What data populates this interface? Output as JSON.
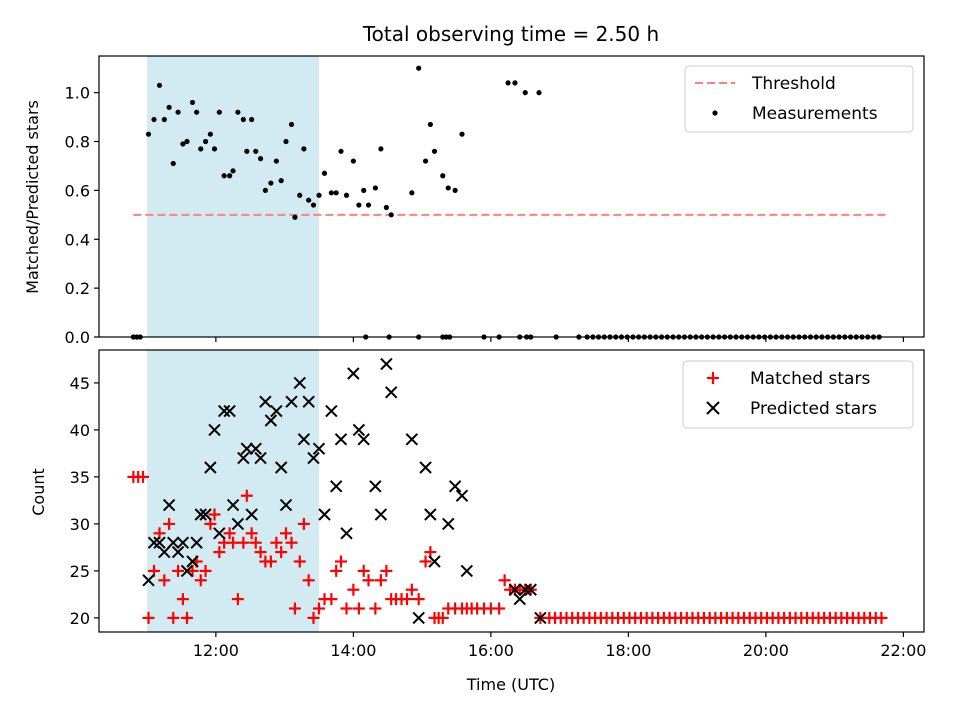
{
  "title": "Total observing time = 2.50 h",
  "colors": {
    "span": "#add8e6",
    "threshold": "#ff7f7f",
    "measurement": "#000000",
    "matched": "#ff0000",
    "predicted": "#000000"
  },
  "chart_data": [
    {
      "type": "scatter",
      "panel": "top",
      "ylabel": "Matched/Predicted stars",
      "xlim": [
        10.3,
        22.3
      ],
      "ylim": [
        0,
        1.15
      ],
      "yticks": [
        0.0,
        0.2,
        0.4,
        0.6,
        0.8,
        1.0
      ],
      "ytick_labels": [
        "0.0",
        "0.2",
        "0.4",
        "0.6",
        "0.8",
        "1.0"
      ],
      "shaded_span": [
        11.0,
        13.5
      ],
      "legend": {
        "position": "top-right",
        "entries": [
          "Threshold",
          "Measurements"
        ]
      },
      "threshold": {
        "name": "Threshold",
        "value": 0.5,
        "x_range": [
          10.8,
          21.75
        ]
      },
      "series": [
        {
          "name": "Measurements",
          "points": [
            [
              10.8,
              0.0
            ],
            [
              10.85,
              0.0
            ],
            [
              10.9,
              0.0
            ],
            [
              11.02,
              0.83
            ],
            [
              11.1,
              0.89
            ],
            [
              11.18,
              1.03
            ],
            [
              11.25,
              0.89
            ],
            [
              11.32,
              0.94
            ],
            [
              11.38,
              0.71
            ],
            [
              11.45,
              0.92
            ],
            [
              11.52,
              0.79
            ],
            [
              11.58,
              0.8
            ],
            [
              11.66,
              0.96
            ],
            [
              11.72,
              0.92
            ],
            [
              11.78,
              0.77
            ],
            [
              11.85,
              0.8
            ],
            [
              11.92,
              0.83
            ],
            [
              11.98,
              0.77
            ],
            [
              12.05,
              0.92
            ],
            [
              12.12,
              0.66
            ],
            [
              12.2,
              0.66
            ],
            [
              12.25,
              0.68
            ],
            [
              12.32,
              0.92
            ],
            [
              12.4,
              0.89
            ],
            [
              12.45,
              0.76
            ],
            [
              12.52,
              0.89
            ],
            [
              12.58,
              0.76
            ],
            [
              12.65,
              0.73
            ],
            [
              12.72,
              0.6
            ],
            [
              12.8,
              0.63
            ],
            [
              12.88,
              0.72
            ],
            [
              12.95,
              0.64
            ],
            [
              13.02,
              0.8
            ],
            [
              13.1,
              0.87
            ],
            [
              13.15,
              0.49
            ],
            [
              13.22,
              0.58
            ],
            [
              13.28,
              0.77
            ],
            [
              13.35,
              0.56
            ],
            [
              13.42,
              0.54
            ],
            [
              13.5,
              0.58
            ],
            [
              13.58,
              0.67
            ],
            [
              13.68,
              0.59
            ],
            [
              13.75,
              0.59
            ],
            [
              13.82,
              0.76
            ],
            [
              13.9,
              0.58
            ],
            [
              14.0,
              0.72
            ],
            [
              14.08,
              0.54
            ],
            [
              14.15,
              0.6
            ],
            [
              14.22,
              0.54
            ],
            [
              14.32,
              0.61
            ],
            [
              14.4,
              0.77
            ],
            [
              14.48,
              0.53
            ],
            [
              14.55,
              0.5
            ],
            [
              14.85,
              0.59
            ],
            [
              14.95,
              1.1
            ],
            [
              15.05,
              0.72
            ],
            [
              15.12,
              0.87
            ],
            [
              15.18,
              0.76
            ],
            [
              15.3,
              0.66
            ],
            [
              15.38,
              0.61
            ],
            [
              15.48,
              0.6
            ],
            [
              15.58,
              0.83
            ],
            [
              16.25,
              1.04
            ],
            [
              16.35,
              1.04
            ],
            [
              16.5,
              1.0
            ],
            [
              16.7,
              1.0
            ],
            [
              14.18,
              0.0
            ],
            [
              14.52,
              0.0
            ],
            [
              14.95,
              0.0
            ],
            [
              15.3,
              0.0
            ],
            [
              15.35,
              0.0
            ],
            [
              15.4,
              0.0
            ],
            [
              15.9,
              0.0
            ],
            [
              16.12,
              0.0
            ],
            [
              16.42,
              0.0
            ],
            [
              16.52,
              0.0
            ],
            [
              16.58,
              0.0
            ],
            [
              16.95,
              0.0
            ],
            [
              17.28,
              0.0
            ]
          ],
          "zero_run": {
            "from": 17.4,
            "to": 21.72,
            "step": 0.0833,
            "value": 0.0
          }
        }
      ]
    },
    {
      "type": "scatter",
      "panel": "bottom",
      "xlabel": "Time (UTC)",
      "ylabel": "Count",
      "xlim": [
        10.3,
        22.3
      ],
      "ylim": [
        18.5,
        48.5
      ],
      "xticks": [
        12,
        14,
        16,
        18,
        20,
        22
      ],
      "xtick_labels": [
        "12:00",
        "14:00",
        "16:00",
        "18:00",
        "20:00",
        "22:00"
      ],
      "yticks": [
        20,
        25,
        30,
        35,
        40,
        45
      ],
      "ytick_labels": [
        "20",
        "25",
        "30",
        "35",
        "40",
        "45"
      ],
      "shaded_span": [
        11.0,
        13.5
      ],
      "legend": {
        "position": "top-right",
        "entries": [
          "Matched stars",
          "Predicted stars"
        ]
      },
      "series": [
        {
          "name": "Matched stars",
          "marker": "plus",
          "points": [
            [
              10.8,
              35
            ],
            [
              10.87,
              35
            ],
            [
              10.94,
              35
            ],
            [
              11.02,
              20
            ],
            [
              11.1,
              25
            ],
            [
              11.18,
              29
            ],
            [
              11.25,
              24
            ],
            [
              11.32,
              30
            ],
            [
              11.38,
              20
            ],
            [
              11.45,
              25
            ],
            [
              11.52,
              22
            ],
            [
              11.58,
              20
            ],
            [
              11.66,
              25
            ],
            [
              11.72,
              26
            ],
            [
              11.78,
              24
            ],
            [
              11.85,
              25
            ],
            [
              11.92,
              30
            ],
            [
              11.98,
              31
            ],
            [
              12.05,
              27
            ],
            [
              12.12,
              28
            ],
            [
              12.2,
              29
            ],
            [
              12.25,
              28
            ],
            [
              12.32,
              22
            ],
            [
              12.4,
              28
            ],
            [
              12.45,
              33
            ],
            [
              12.52,
              29
            ],
            [
              12.58,
              28
            ],
            [
              12.65,
              27
            ],
            [
              12.72,
              26
            ],
            [
              12.8,
              26
            ],
            [
              12.88,
              28
            ],
            [
              12.95,
              27
            ],
            [
              13.02,
              29
            ],
            [
              13.1,
              28
            ],
            [
              13.15,
              21
            ],
            [
              13.22,
              26
            ],
            [
              13.28,
              30
            ],
            [
              13.35,
              24
            ],
            [
              13.42,
              20
            ],
            [
              13.5,
              21
            ],
            [
              13.58,
              22
            ],
            [
              13.68,
              22
            ],
            [
              13.75,
              25
            ],
            [
              13.82,
              26
            ],
            [
              13.9,
              21
            ],
            [
              14.0,
              23
            ],
            [
              14.08,
              21
            ],
            [
              14.15,
              25
            ],
            [
              14.22,
              24
            ],
            [
              14.32,
              21
            ],
            [
              14.4,
              24
            ],
            [
              14.48,
              25
            ],
            [
              14.55,
              22
            ],
            [
              14.62,
              22
            ],
            [
              14.7,
              22
            ],
            [
              14.78,
              22
            ],
            [
              14.85,
              23
            ],
            [
              14.95,
              22
            ],
            [
              15.05,
              26
            ],
            [
              15.12,
              27
            ],
            [
              15.18,
              20
            ],
            [
              15.24,
              20
            ],
            [
              15.3,
              20
            ],
            [
              15.38,
              21
            ],
            [
              15.48,
              21
            ],
            [
              15.58,
              21
            ],
            [
              15.65,
              21
            ],
            [
              15.72,
              21
            ],
            [
              15.8,
              21
            ],
            [
              15.9,
              21
            ],
            [
              16.0,
              21
            ],
            [
              16.12,
              21
            ],
            [
              16.2,
              24
            ],
            [
              16.28,
              23
            ],
            [
              16.35,
              23
            ],
            [
              16.42,
              23
            ],
            [
              16.5,
              23
            ],
            [
              16.58,
              23
            ],
            [
              16.72,
              20
            ]
          ],
          "run": {
            "from": 16.85,
            "to": 21.72,
            "step": 0.0833,
            "value": 20
          }
        },
        {
          "name": "Predicted stars",
          "marker": "x",
          "points": [
            [
              11.02,
              24
            ],
            [
              11.1,
              28
            ],
            [
              11.18,
              28
            ],
            [
              11.25,
              27
            ],
            [
              11.32,
              32
            ],
            [
              11.38,
              28
            ],
            [
              11.45,
              27
            ],
            [
              11.52,
              28
            ],
            [
              11.58,
              25
            ],
            [
              11.66,
              26
            ],
            [
              11.72,
              28
            ],
            [
              11.78,
              31
            ],
            [
              11.85,
              31
            ],
            [
              11.92,
              36
            ],
            [
              11.98,
              40
            ],
            [
              12.05,
              29
            ],
            [
              12.12,
              42
            ],
            [
              12.2,
              42
            ],
            [
              12.25,
              32
            ],
            [
              12.32,
              30
            ],
            [
              12.4,
              37
            ],
            [
              12.45,
              38
            ],
            [
              12.52,
              31
            ],
            [
              12.58,
              38
            ],
            [
              12.65,
              37
            ],
            [
              12.72,
              43
            ],
            [
              12.8,
              41
            ],
            [
              12.88,
              42
            ],
            [
              12.95,
              36
            ],
            [
              13.02,
              32
            ],
            [
              13.1,
              43
            ],
            [
              13.22,
              45
            ],
            [
              13.28,
              39
            ],
            [
              13.35,
              43
            ],
            [
              13.42,
              37
            ],
            [
              13.5,
              38
            ],
            [
              13.58,
              31
            ],
            [
              13.68,
              42
            ],
            [
              13.75,
              34
            ],
            [
              13.82,
              39
            ],
            [
              13.9,
              29
            ],
            [
              14.0,
              46
            ],
            [
              14.08,
              40
            ],
            [
              14.15,
              39
            ],
            [
              14.32,
              34
            ],
            [
              14.4,
              31
            ],
            [
              14.48,
              47
            ],
            [
              14.55,
              44
            ],
            [
              14.85,
              39
            ],
            [
              14.95,
              20
            ],
            [
              15.05,
              36
            ],
            [
              15.12,
              31
            ],
            [
              15.18,
              26
            ],
            [
              15.38,
              30
            ],
            [
              15.48,
              34
            ],
            [
              15.58,
              33
            ],
            [
              15.65,
              25
            ],
            [
              16.35,
              23
            ],
            [
              16.42,
              22
            ],
            [
              16.5,
              23
            ],
            [
              16.58,
              23
            ],
            [
              16.72,
              20
            ]
          ]
        }
      ]
    }
  ]
}
